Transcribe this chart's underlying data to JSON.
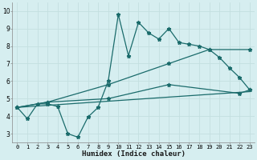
{
  "title": "",
  "xlabel": "Humidex (Indice chaleur)",
  "ylabel": "",
  "xlim": [
    -0.5,
    23.5
  ],
  "ylim": [
    2.5,
    10.5
  ],
  "xticks": [
    0,
    1,
    2,
    3,
    4,
    5,
    6,
    7,
    8,
    9,
    10,
    11,
    12,
    13,
    14,
    15,
    16,
    17,
    18,
    19,
    20,
    21,
    22,
    23
  ],
  "yticks": [
    3,
    4,
    5,
    6,
    7,
    8,
    9,
    10
  ],
  "bg_color": "#d6eef0",
  "grid_color": "#c4dfe0",
  "line_color": "#1a6b6b",
  "line1_x": [
    0,
    1,
    2,
    3,
    4,
    5,
    6,
    7,
    8,
    9,
    10,
    11,
    12,
    13,
    14,
    15,
    16,
    17,
    18,
    19,
    20,
    21,
    22,
    23
  ],
  "line1_y": [
    4.5,
    3.85,
    4.7,
    4.7,
    4.55,
    3.0,
    2.8,
    3.95,
    4.5,
    6.0,
    9.8,
    7.45,
    9.35,
    8.75,
    8.4,
    9.0,
    8.2,
    8.1,
    8.0,
    7.8,
    7.35,
    6.75,
    6.2,
    5.5
  ],
  "line2_x": [
    0,
    3,
    9,
    15,
    19,
    23
  ],
  "line2_y": [
    4.5,
    4.8,
    5.8,
    7.0,
    7.8,
    7.8
  ],
  "line3_x": [
    0,
    3,
    9,
    15,
    22,
    23
  ],
  "line3_y": [
    4.5,
    4.8,
    5.0,
    5.8,
    5.3,
    5.5
  ],
  "line4_x": [
    0,
    23
  ],
  "line4_y": [
    4.5,
    5.4
  ],
  "marker": "*",
  "markersize": 3.5,
  "linewidth": 0.9
}
